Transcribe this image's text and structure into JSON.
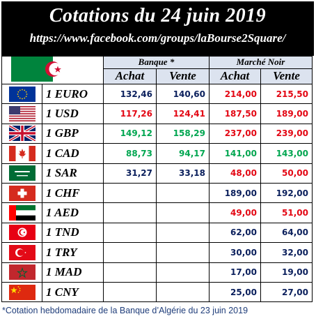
{
  "header": {
    "title": "Cotations du 24 juin 2019",
    "url": "https://www.facebook.com/groups/laBourse2Square/"
  },
  "columns": {
    "bank_group": "Banque *",
    "black_market_group": "Marché Noir",
    "buy": "Achat",
    "sell": "Vente"
  },
  "rows": [
    {
      "flag": "eu-flag-icon",
      "currency": "1 EURO",
      "bank_buy": "132,46",
      "bank_sell": "140,60",
      "black_buy": "214,00",
      "black_sell": "215,50",
      "bank_color": "#0a1f5c",
      "black_color": "#e30613"
    },
    {
      "flag": "usa-flag-icon",
      "currency": "1 USD",
      "bank_buy": "117,26",
      "bank_sell": "124,41",
      "black_buy": "187,50",
      "black_sell": "189,00",
      "bank_color": "#e30613",
      "black_color": "#e30613"
    },
    {
      "flag": "uk-flag-icon",
      "currency": "1 GBP",
      "bank_buy": "149,12",
      "bank_sell": "158,29",
      "black_buy": "237,00",
      "black_sell": "239,00",
      "bank_color": "#00a650",
      "black_color": "#e30613"
    },
    {
      "flag": "canada-flag-icon",
      "currency": "1 CAD",
      "bank_buy": "88,73",
      "bank_sell": "94,17",
      "black_buy": "141,00",
      "black_sell": "143,00",
      "bank_color": "#00a650",
      "black_color": "#00a650"
    },
    {
      "flag": "saudi-flag-icon",
      "currency": "1 SAR",
      "bank_buy": "31,27",
      "bank_sell": "33,18",
      "black_buy": "48,00",
      "black_sell": "50,00",
      "bank_color": "#0a1f5c",
      "black_color": "#e30613"
    },
    {
      "flag": "swiss-flag-icon",
      "currency": "1 CHF",
      "bank_buy": "",
      "bank_sell": "",
      "black_buy": "189,00",
      "black_sell": "192,00",
      "bank_color": "#0a1f5c",
      "black_color": "#0a1f5c"
    },
    {
      "flag": "uae-flag-icon",
      "currency": "1 AED",
      "bank_buy": "",
      "bank_sell": "",
      "black_buy": "49,00",
      "black_sell": "51,00",
      "bank_color": "#0a1f5c",
      "black_color": "#e30613"
    },
    {
      "flag": "tunisia-flag-icon",
      "currency": "1 TND",
      "bank_buy": "",
      "bank_sell": "",
      "black_buy": "62,00",
      "black_sell": "64,00",
      "bank_color": "#0a1f5c",
      "black_color": "#0a1f5c"
    },
    {
      "flag": "turkey-flag-icon",
      "currency": "1 TRY",
      "bank_buy": "",
      "bank_sell": "",
      "black_buy": "30,00",
      "black_sell": "32,00",
      "bank_color": "#0a1f5c",
      "black_color": "#0a1f5c"
    },
    {
      "flag": "morocco-flag-icon",
      "currency": "1 MAD",
      "bank_buy": "",
      "bank_sell": "",
      "black_buy": "17,00",
      "black_sell": "19,00",
      "bank_color": "#0a1f5c",
      "black_color": "#0a1f5c"
    },
    {
      "flag": "china-flag-icon",
      "currency": "1 CNY",
      "bank_buy": "",
      "bank_sell": "",
      "black_buy": "25,00",
      "black_sell": "27,00",
      "bank_color": "#0a1f5c",
      "black_color": "#0a1f5c"
    }
  ],
  "footnote": "*Cotation hebdomadaire de la Banque d’Algérie du 23 juin 2019"
}
